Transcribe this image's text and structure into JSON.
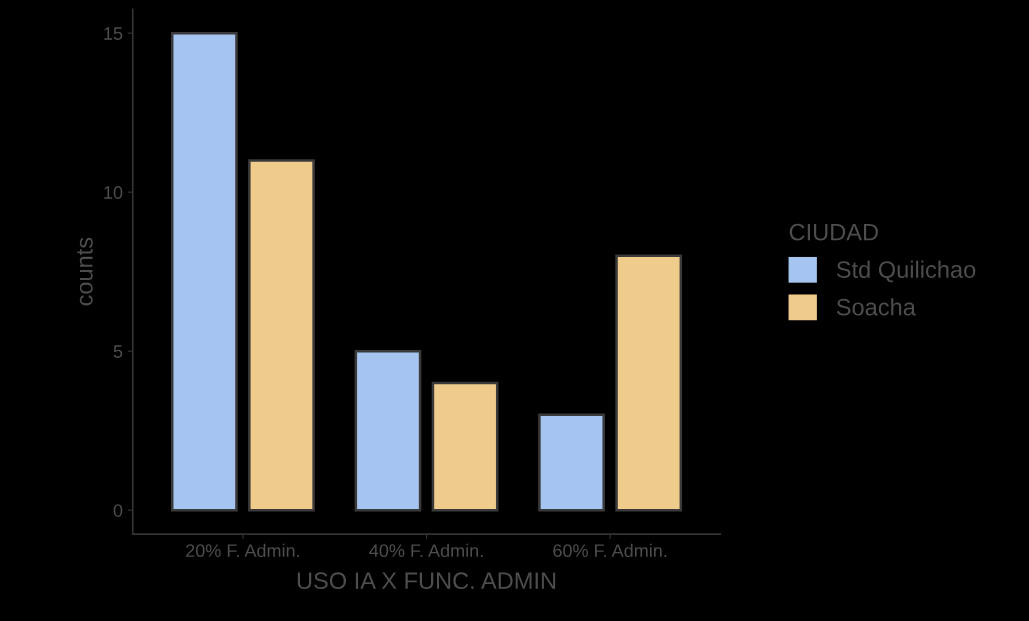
{
  "chart_data": {
    "type": "bar",
    "xlabel": "USO IA X FUNC. ADMIN",
    "ylabel": "counts",
    "legend_title": "CIUDAD",
    "categories": [
      "20% F. Admin.",
      "40% F. Admin.",
      "60% F. Admin."
    ],
    "series": [
      {
        "name": "Std Quilichao",
        "color": "#a6c4f0",
        "values": [
          15,
          5,
          3
        ]
      },
      {
        "name": "Soacha",
        "color": "#f0cc8c",
        "values": [
          11,
          4,
          8
        ]
      }
    ],
    "ylim": [
      -0.75,
      15.75
    ],
    "yticks": [
      0,
      5,
      10,
      15
    ],
    "grid": false,
    "legend": "right"
  }
}
